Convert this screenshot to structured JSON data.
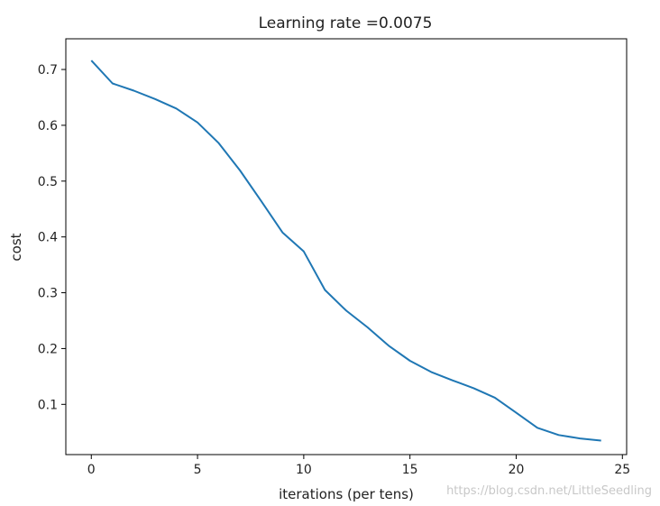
{
  "chart_data": {
    "type": "line",
    "title": "Learning rate =0.0075",
    "xlabel": "iterations (per tens)",
    "ylabel": "cost",
    "xlim": [
      -1.2,
      25.2
    ],
    "ylim": [
      0.01,
      0.755
    ],
    "xticks": [
      0,
      5,
      10,
      15,
      20,
      25
    ],
    "yticks": [
      0.1,
      0.2,
      0.3,
      0.4,
      0.5,
      0.6,
      0.7
    ],
    "grid": false,
    "series_color": "#1f77b4",
    "x": [
      0,
      1,
      2,
      3,
      4,
      5,
      6,
      7,
      8,
      9,
      10,
      11,
      12,
      13,
      14,
      15,
      16,
      17,
      18,
      19,
      20,
      21,
      22,
      23,
      24
    ],
    "y": [
      0.716,
      0.675,
      0.662,
      0.647,
      0.63,
      0.605,
      0.568,
      0.519,
      0.464,
      0.408,
      0.374,
      0.305,
      0.268,
      0.238,
      0.205,
      0.178,
      0.158,
      0.143,
      0.129,
      0.112,
      0.085,
      0.058,
      0.045,
      0.039,
      0.035
    ]
  },
  "watermark": "https://blog.csdn.net/LittleSeedling"
}
